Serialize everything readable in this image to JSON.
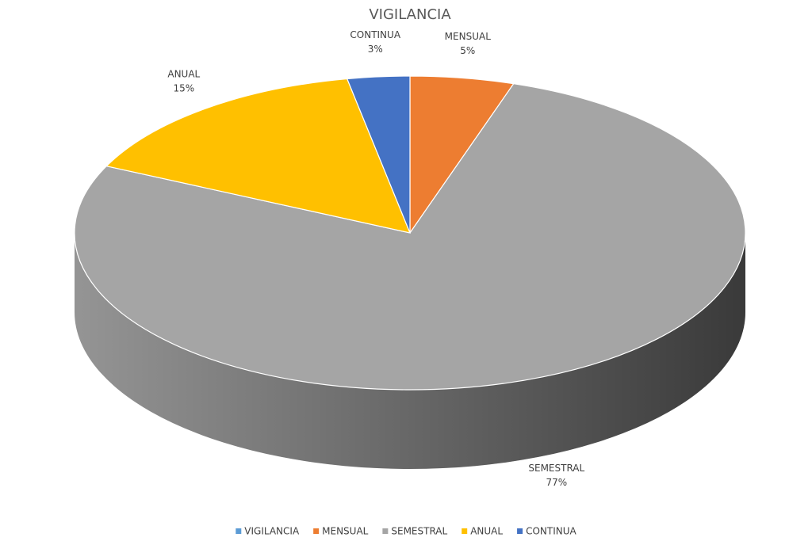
{
  "chart_data": {
    "type": "pie",
    "title": "VIGILANCIA",
    "categories": [
      "VIGILANCIA",
      "MENSUAL",
      "SEMESTRAL",
      "ANUAL",
      "CONTINUA"
    ],
    "values": [
      0,
      5,
      77,
      15,
      3
    ],
    "value_labels": [
      null,
      "5%",
      "77%",
      "15%",
      "3%"
    ],
    "colors": [
      "#5b9bd5",
      "#ed7d31",
      "#a5a5a5",
      "#ffc000",
      "#4472c4"
    ],
    "legend": "bottom"
  }
}
